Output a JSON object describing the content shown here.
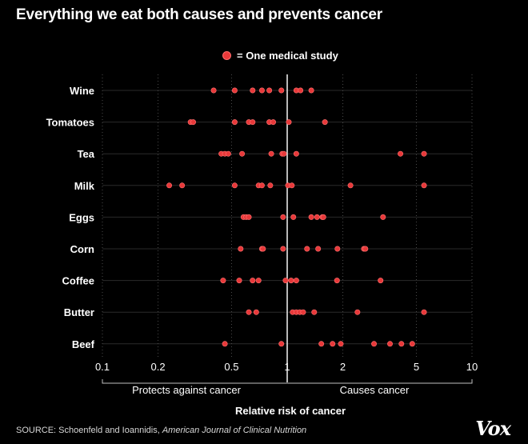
{
  "title": "Everything we eat both causes and prevents cancer",
  "legend": {
    "label": "= One medical study",
    "color": "#e8393a"
  },
  "source": {
    "prefix": "SOURCE: Schoenfeld and Ioannidis, ",
    "journal": "American Journal of Clinical Nutrition"
  },
  "brand": "Vox",
  "chart_data": {
    "type": "scatter",
    "title": "Everything we eat both causes and prevents cancer",
    "xlabel": "Relative risk of cancer",
    "x_scale": "log",
    "xlim": [
      0.1,
      10
    ],
    "x_ticks": [
      0.1,
      0.2,
      0.5,
      1,
      2,
      5,
      10
    ],
    "x_tick_labels": [
      "0.1",
      "0.2",
      "0.5",
      "1",
      "2",
      "5",
      "10"
    ],
    "reference_line": 1,
    "annotations": {
      "left": "Protects against cancer",
      "right": "Causes cancer"
    },
    "point_color": "#e8393a",
    "series": [
      {
        "name": "Wine",
        "values": [
          0.4,
          0.52,
          0.65,
          0.73,
          0.8,
          0.93,
          1.12,
          1.18,
          1.35
        ]
      },
      {
        "name": "Tomatoes",
        "values": [
          0.3,
          0.31,
          0.52,
          0.62,
          0.65,
          0.8,
          0.84,
          1.02,
          1.6
        ]
      },
      {
        "name": "Tea",
        "values": [
          0.44,
          0.46,
          0.48,
          0.57,
          0.82,
          0.94,
          0.96,
          1.12,
          4.1,
          5.5
        ]
      },
      {
        "name": "Milk",
        "values": [
          0.23,
          0.27,
          0.52,
          0.7,
          0.73,
          0.81,
          1.01,
          1.06,
          2.2,
          5.5
        ]
      },
      {
        "name": "Eggs",
        "values": [
          0.58,
          0.6,
          0.62,
          0.95,
          1.08,
          1.35,
          1.45,
          1.55,
          1.57,
          3.3
        ]
      },
      {
        "name": "Corn",
        "values": [
          0.56,
          0.73,
          0.74,
          0.95,
          1.28,
          1.47,
          1.87,
          2.6,
          2.65
        ]
      },
      {
        "name": "Coffee",
        "values": [
          0.45,
          0.55,
          0.65,
          0.7,
          0.98,
          1.05,
          1.12,
          1.86,
          3.2
        ]
      },
      {
        "name": "Butter",
        "values": [
          0.62,
          0.68,
          1.07,
          1.12,
          1.17,
          1.22,
          1.4,
          2.4,
          5.5
        ]
      },
      {
        "name": "Beef",
        "values": [
          0.46,
          0.93,
          1.53,
          1.76,
          1.95,
          2.95,
          3.6,
          4.15,
          4.75
        ]
      }
    ]
  }
}
